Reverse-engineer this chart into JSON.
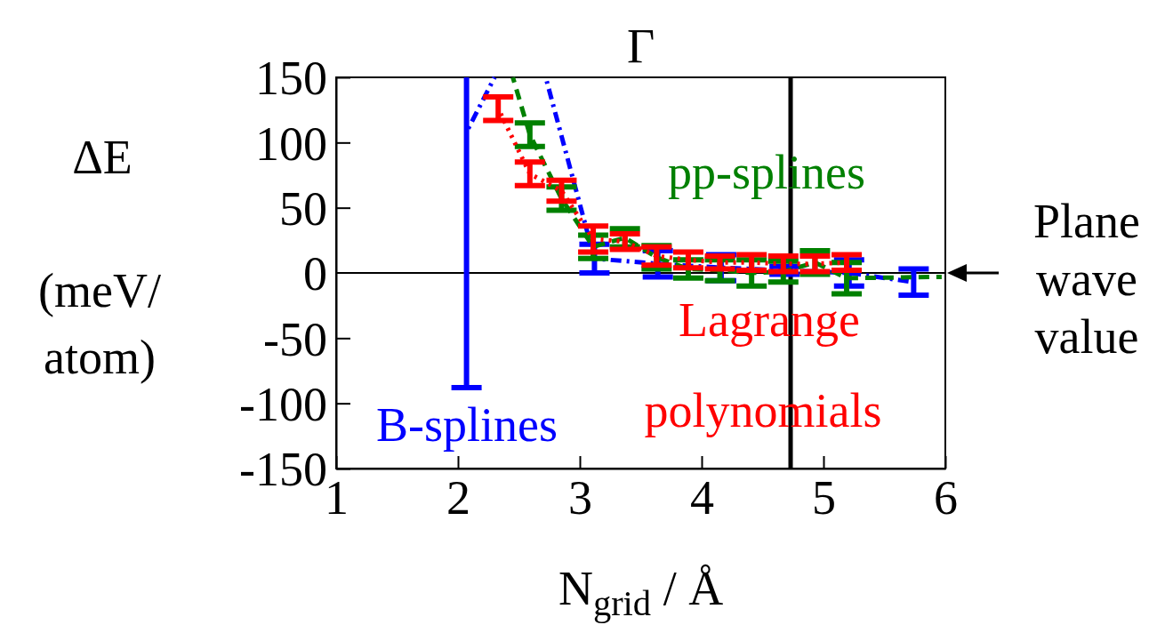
{
  "chart_data": {
    "type": "line",
    "title": "Γ",
    "xlabel": "N$_{grid}$ / Å",
    "ylabel": "ΔE (meV/ atom)",
    "xlim": [
      1,
      6
    ],
    "xticks": [
      1,
      2,
      3,
      4,
      5,
      6
    ],
    "ylim": [
      -150,
      150
    ],
    "yticks": [
      -150,
      -100,
      -50,
      0,
      50,
      100,
      150
    ],
    "marker": "none",
    "series": [
      {
        "name": "Lagrange polynomials",
        "color": "#ff0000",
        "line_style": "dotted",
        "x": [
          2.33,
          2.59,
          2.85,
          3.11,
          3.37,
          3.63,
          3.89,
          4.15,
          4.41,
          4.67,
          4.93,
          5.19
        ],
        "values": [
          126,
          76,
          63,
          26,
          24,
          13,
          10,
          8,
          8,
          7,
          7,
          8
        ],
        "errors": [
          9,
          9,
          8,
          10,
          6,
          7,
          6,
          5,
          6,
          6,
          6,
          6
        ]
      },
      {
        "name": "pp-splines",
        "color": "#008000",
        "line_style": "dashed",
        "x": [
          2.45,
          2.59,
          2.85,
          3.11,
          3.37,
          3.63,
          3.89,
          4.15,
          4.41,
          4.67,
          4.93,
          5.19,
          5.97
        ],
        "values": [
          150,
          106,
          57,
          20,
          27,
          12,
          3,
          2,
          0,
          1,
          8,
          -4,
          -3
        ],
        "errors": [
          null,
          9,
          9,
          9,
          7,
          9,
          7,
          8,
          10,
          8,
          9,
          12,
          null
        ]
      },
      {
        "name": "B-splines",
        "color": "#0000ff",
        "line_style": "dashdot",
        "x": [
          2.07,
          2.3,
          2.5,
          2.72,
          3.12,
          3.64,
          4.16,
          4.68,
          5.21,
          5.74
        ],
        "values": [
          108,
          150,
          null,
          150,
          11,
          7,
          4,
          2,
          0,
          -7
        ],
        "errors": [
          [
            -88,
            150
          ],
          null,
          null,
          null,
          11,
          10,
          10,
          3,
          10,
          10
        ]
      }
    ],
    "ref_lines": [
      {
        "axis": "y",
        "value": 0,
        "color": "#000000",
        "line_style": "solid"
      },
      {
        "axis": "x",
        "value": 4.73,
        "color": "#000000",
        "line_style": "solid"
      }
    ],
    "annotations": [
      "Plane wave value"
    ]
  }
}
